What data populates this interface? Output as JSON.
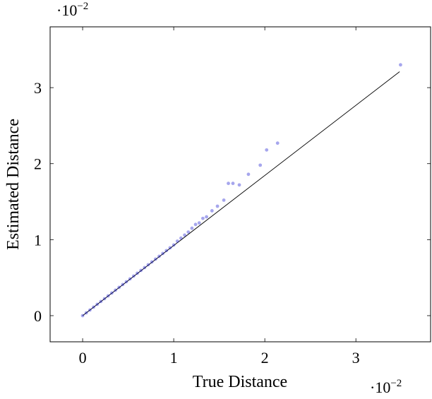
{
  "chart_data": {
    "type": "scatter",
    "x_label": "True Distance",
    "y_label": "Estimated Distance",
    "x_multiplier": {
      "base": "·10",
      "exponent": "−2"
    },
    "y_multiplier": {
      "base": "·10",
      "exponent": "−2"
    },
    "xlim": [
      -0.357,
      3.82
    ],
    "ylim": [
      -0.344,
      3.8
    ],
    "xticks": [
      0,
      1,
      2,
      3
    ],
    "yticks": [
      0,
      1,
      2,
      3
    ],
    "grid": false,
    "series": [
      {
        "color": "#0000cc",
        "x": [
          0,
          0.04,
          0.08,
          0.12,
          0.16,
          0.2,
          0.24,
          0.28,
          0.32,
          0.36,
          0.4,
          0.44,
          0.48,
          0.52,
          0.56,
          0.6,
          0.64,
          0.68,
          0.72,
          0.76,
          0.8,
          0.84,
          0.88,
          0.92,
          0.96,
          1.0,
          1.04,
          1.08,
          1.12,
          1.16,
          1.2,
          1.24,
          1.28,
          1.32,
          1.36,
          1.42,
          1.48,
          1.55,
          1.6,
          1.65,
          1.72,
          1.82,
          1.95,
          2.02,
          2.14,
          3.49
        ],
        "values": [
          0,
          0.037,
          0.074,
          0.112,
          0.149,
          0.186,
          0.223,
          0.26,
          0.298,
          0.335,
          0.372,
          0.409,
          0.446,
          0.484,
          0.521,
          0.558,
          0.595,
          0.632,
          0.67,
          0.707,
          0.744,
          0.781,
          0.818,
          0.856,
          0.893,
          0.93,
          0.98,
          1.02,
          1.06,
          1.1,
          1.15,
          1.2,
          1.22,
          1.28,
          1.3,
          1.38,
          1.44,
          1.52,
          1.74,
          1.74,
          1.72,
          1.86,
          1.98,
          2.18,
          2.27,
          3.3
        ]
      }
    ],
    "reference_line": {
      "color": "#000000",
      "x": [
        0,
        3.48
      ],
      "values": [
        0,
        3.21
      ]
    }
  }
}
